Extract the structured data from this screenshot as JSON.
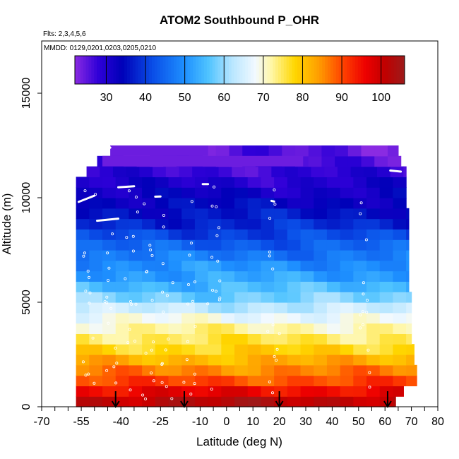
{
  "chart_data": {
    "type": "heatmap",
    "title": "ATOM2 Southbound P_OHR",
    "flights_label": "Flts: 2,3,4,5,6",
    "dates_label": "MMDD: 0129,0201,0203,0205,0210",
    "xlabel": "Latitude (deg N)",
    "ylabel": "Altitude (m)",
    "xlim": [
      -70,
      80
    ],
    "ylim": [
      0,
      17500
    ],
    "x_ticks": [
      -70,
      -55,
      -40,
      -25,
      -10,
      0,
      10,
      20,
      30,
      40,
      50,
      60,
      70,
      80
    ],
    "x_tick_labels": [
      "-70",
      "-55",
      "-40",
      "-25",
      "-10",
      "0",
      "10",
      "20",
      "30",
      "40",
      "50",
      "60",
      "70",
      "80"
    ],
    "y_ticks": [
      0,
      5000,
      10000,
      15000
    ],
    "y_tick_labels": [
      "0",
      "5000",
      "10000",
      "15000"
    ],
    "colorbar": {
      "range": [
        22,
        106
      ],
      "ticks": [
        30,
        40,
        50,
        60,
        70,
        80,
        90,
        100
      ],
      "tick_labels": [
        "30",
        "40",
        "50",
        "60",
        "70",
        "80",
        "90",
        "100"
      ],
      "stops": [
        [
          22,
          "#8a2be2"
        ],
        [
          28,
          "#2f00d8"
        ],
        [
          34,
          "#0000b8"
        ],
        [
          42,
          "#0a4fe8"
        ],
        [
          50,
          "#1e90ff"
        ],
        [
          56,
          "#4fc3ff"
        ],
        [
          62,
          "#b8e6ff"
        ],
        [
          68,
          "#f2f9ff"
        ],
        [
          72,
          "#fff7a8"
        ],
        [
          78,
          "#ffd700"
        ],
        [
          84,
          "#ff9f00"
        ],
        [
          90,
          "#ff4500"
        ],
        [
          96,
          "#ee0000"
        ],
        [
          101,
          "#c00000"
        ],
        [
          106,
          "#9c1b1b"
        ]
      ]
    },
    "layer_bottoms_m": [
      0,
      500,
      1000,
      1500,
      2000,
      2500,
      3000,
      3500,
      4000,
      4500,
      5000,
      5500,
      6000,
      6500,
      7000,
      7500,
      8000,
      8500,
      9000,
      9500,
      10000,
      10500,
      11000,
      11500,
      12000
    ],
    "layer_values": [
      102,
      96,
      90,
      86,
      82,
      78,
      75,
      72,
      68,
      63,
      58,
      55,
      52,
      50,
      47,
      44,
      41,
      38,
      36,
      34,
      32,
      30,
      28,
      26,
      25
    ],
    "layer_lat_extent": [
      [
        -57,
        64
      ],
      [
        -57,
        67
      ],
      [
        -57,
        72
      ],
      [
        -57,
        72
      ],
      [
        -57,
        71
      ],
      [
        -57,
        71
      ],
      [
        -57,
        70
      ],
      [
        -57,
        70
      ],
      [
        -57,
        70
      ],
      [
        -57,
        70
      ],
      [
        -57,
        70
      ],
      [
        -57,
        69
      ],
      [
        -57,
        69
      ],
      [
        -57,
        69
      ],
      [
        -57,
        69
      ],
      [
        -57,
        69
      ],
      [
        -57,
        69
      ],
      [
        -57,
        69
      ],
      [
        -57,
        69
      ],
      [
        -57,
        68
      ],
      [
        -57,
        68
      ],
      [
        -57,
        68
      ],
      [
        -53,
        68
      ],
      [
        -49,
        66
      ],
      [
        -44,
        65
      ]
    ],
    "upper_layers": [
      {
        "alt_bottom_m": 11500,
        "alt_top_m": 12000,
        "lat_range": [
          -47,
          29
        ]
      },
      {
        "alt_bottom_m": 12000,
        "alt_top_m": 12500,
        "lat_range": [
          -44,
          -7
        ]
      }
    ],
    "ground_arrows_lat": [
      -42,
      -16,
      20,
      61
    ]
  }
}
